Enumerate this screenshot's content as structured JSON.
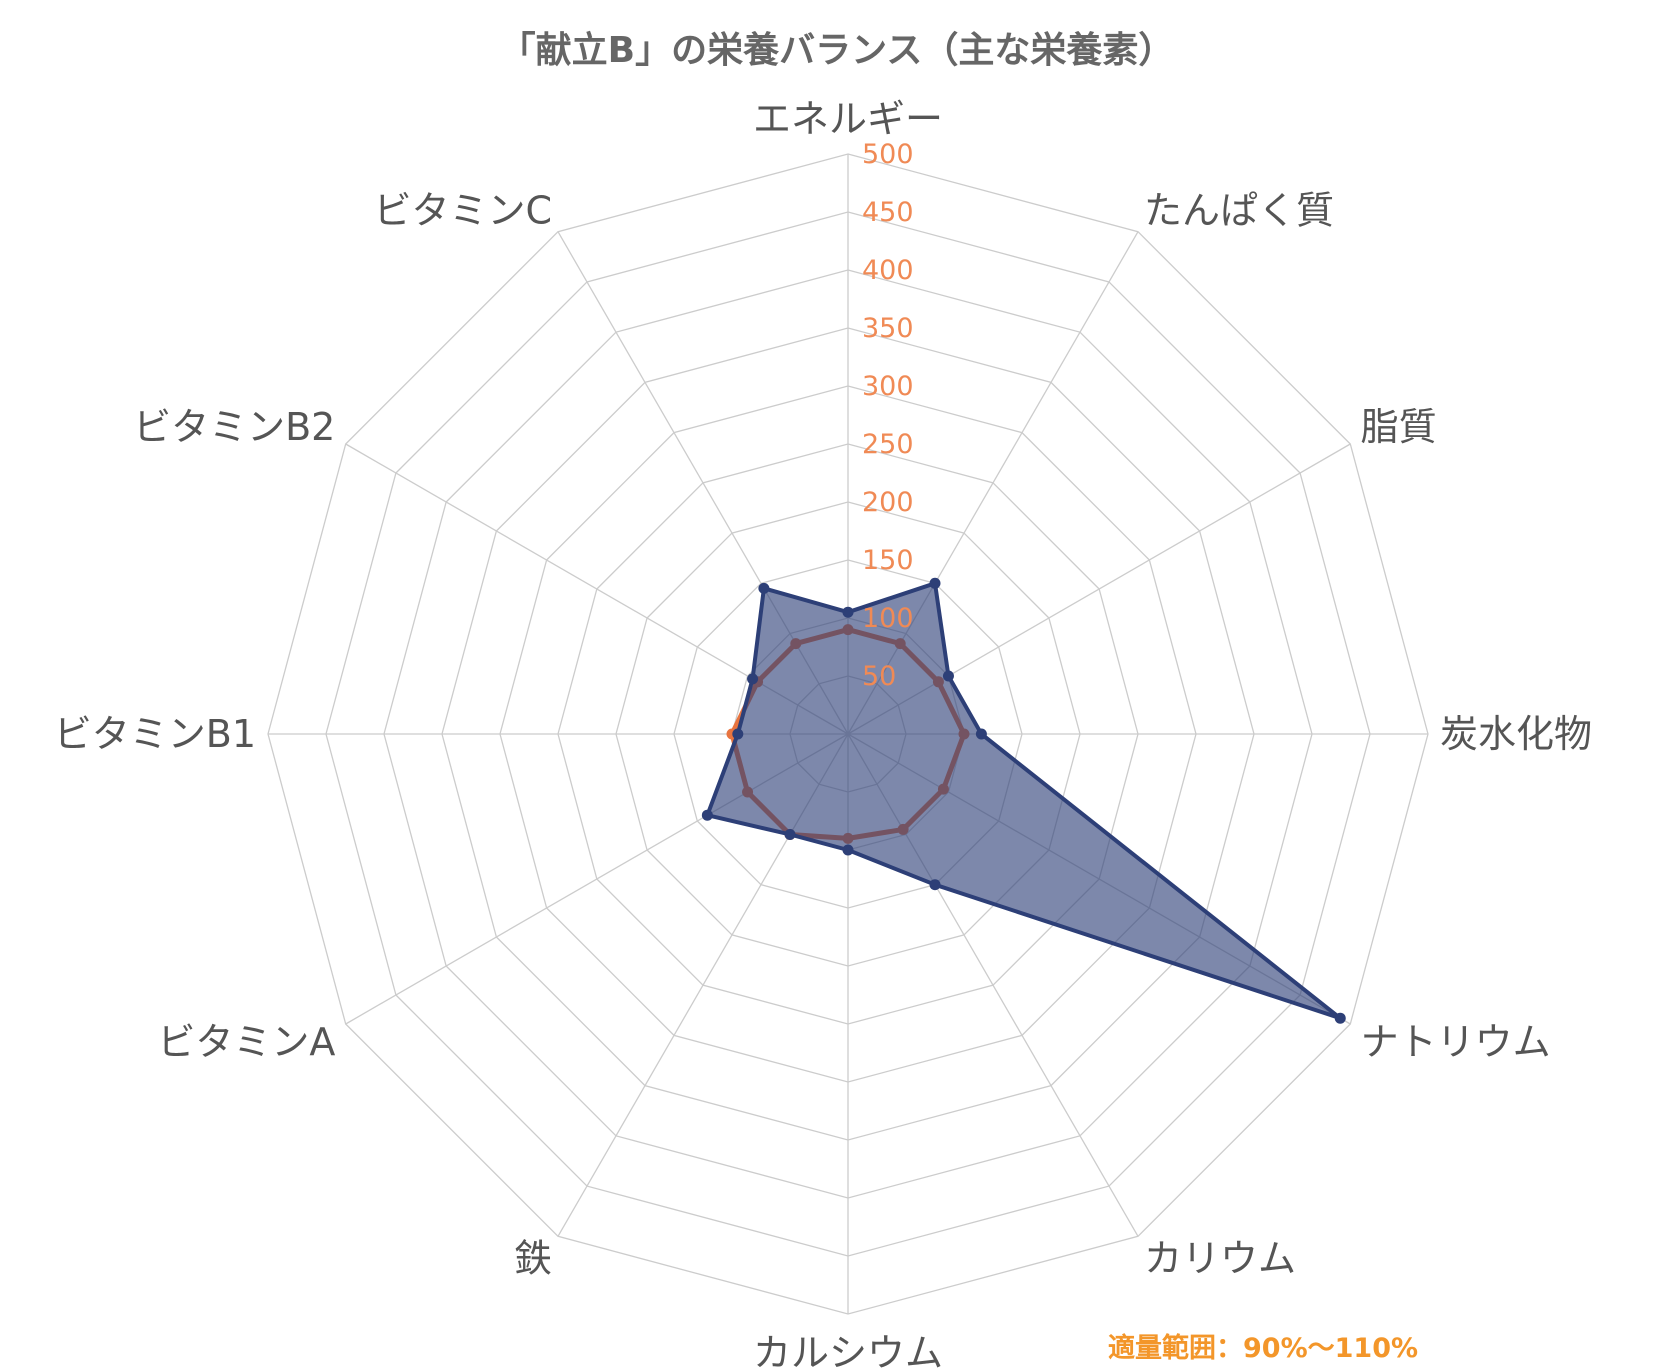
{
  "chart_data": {
    "type": "radar",
    "title": "「献立B」の栄養バランス（主な栄養素）",
    "axes": [
      "エネルギー",
      "たんぱく質",
      "脂質",
      "炭水化物",
      "ナトリウム",
      "カリウム",
      "カルシウム",
      "鉄",
      "ビタミンA",
      "ビタミンB1",
      "ビタミンB2",
      "ビタミンC"
    ],
    "rlim": [
      0,
      500
    ],
    "ticks": [
      50,
      100,
      150,
      200,
      250,
      300,
      350,
      400,
      450,
      500
    ],
    "grid": true,
    "series": [
      {
        "values": [
          105,
          150,
          100,
          115,
          490,
          150,
          100,
          100,
          140,
          95,
          95,
          145
        ],
        "color": "#2d3f77",
        "fill": "rgba(45,63,119,0.62)"
      },
      {
        "values": [
          90,
          90,
          90,
          100,
          95,
          95,
          90,
          100,
          100,
          100,
          90,
          90
        ],
        "color": "#e8743f",
        "fill": "none"
      }
    ],
    "annotation": "適量範囲：90%〜110%"
  },
  "colors": {
    "main_series": "#2d3f77",
    "reference_series": "#e8743f",
    "grid": "#cccccc",
    "tick_labels": "#f08a55",
    "annotation": "#f3962a",
    "text": "#555555"
  }
}
